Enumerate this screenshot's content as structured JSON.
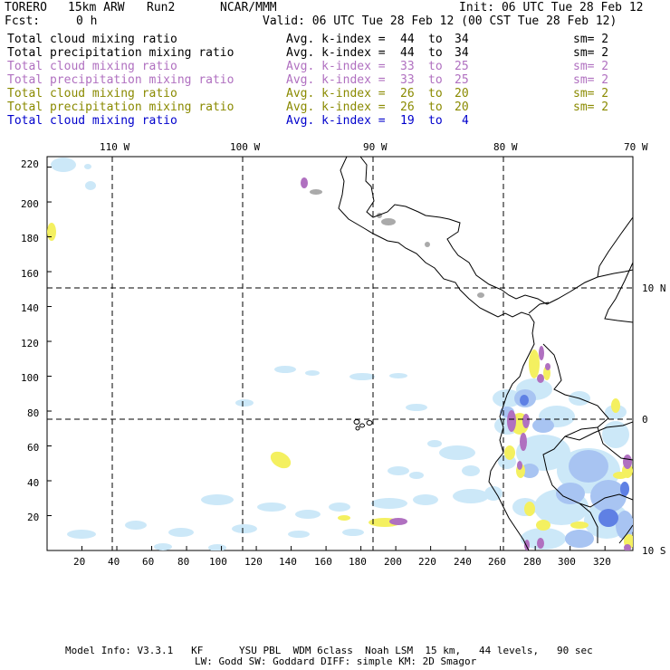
{
  "header": {
    "model": "TORERO",
    "resolution": "15km ARW",
    "run": "Run2",
    "org": "NCAR/MMM",
    "init": "Init: 06 UTC Tue 28 Feb 12",
    "fcst_label": "Fcst:",
    "fcst_value": "0 h",
    "valid": "Valid: 06 UTC Tue 28 Feb 12 (00 CST Tue 28 Feb 12)"
  },
  "legend": {
    "kindex_label": "Avg. k-index =",
    "to": "to",
    "rows": [
      {
        "field": "Total cloud mixing ratio",
        "from": "44",
        "to": "34",
        "sm": "sm= 2",
        "color": "#000000"
      },
      {
        "field": "Total precipitation mixing ratio",
        "from": "44",
        "to": "34",
        "sm": "sm= 2",
        "color": "#000000"
      },
      {
        "field": "Total cloud mixing ratio",
        "from": "33",
        "to": "25",
        "sm": "sm= 2",
        "color": "#b070c0"
      },
      {
        "field": "Total precipitation mixing ratio",
        "from": "33",
        "to": "25",
        "sm": "sm= 2",
        "color": "#b070c0"
      },
      {
        "field": "Total cloud mixing ratio",
        "from": "26",
        "to": "20",
        "sm": "sm= 2",
        "color": "#8a8a00"
      },
      {
        "field": "Total precipitation mixing ratio",
        "from": "26",
        "to": "20",
        "sm": "sm= 2",
        "color": "#8a8a00"
      },
      {
        "field": "Total cloud mixing ratio",
        "from": "19",
        "to": "4",
        "sm": "",
        "color": "#0000cc"
      }
    ]
  },
  "map": {
    "lon_labels": [
      "110 W",
      "100 W",
      "90 W",
      "80 W",
      "70 W"
    ],
    "lat_labels": [
      "10 N",
      "0",
      "10 S"
    ],
    "x_ticks": [
      "20",
      "40",
      "60",
      "80",
      "100",
      "120",
      "140",
      "160",
      "180",
      "200",
      "220",
      "240",
      "260",
      "280",
      "300",
      "320"
    ],
    "y_ticks": [
      "20",
      "40",
      "60",
      "80",
      "100",
      "120",
      "140",
      "160",
      "180",
      "200",
      "220"
    ],
    "x_range": [
      0,
      336
    ],
    "y_range": [
      0,
      226
    ],
    "colors": {
      "light_blue": "#cce8f8",
      "mid_blue": "#99bbf0",
      "dark_blue": "#5577e0",
      "yellow": "#f4f060",
      "violet": "#b070c0",
      "gray": "#aaaaaa"
    }
  },
  "footer": {
    "line1": "Model Info: V3.3.1   KF      YSU PBL  WDM 6class  Noah LSM  15 km,   44 levels,   90 sec",
    "line2": "LW: Godd SW: Goddard DIFF: simple KM: 2D Smagor"
  }
}
